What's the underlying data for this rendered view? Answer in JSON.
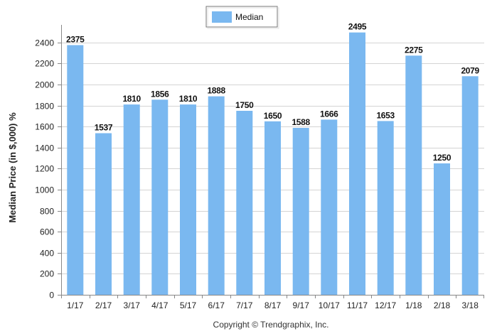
{
  "chart_data": {
    "type": "bar",
    "categories": [
      "1/17",
      "2/17",
      "3/17",
      "4/17",
      "5/17",
      "6/17",
      "7/17",
      "8/17",
      "9/17",
      "10/17",
      "11/17",
      "12/17",
      "1/18",
      "2/18",
      "3/18"
    ],
    "series": [
      {
        "name": "Median",
        "values": [
          2375,
          1537,
          1810,
          1856,
          1810,
          1888,
          1750,
          1650,
          1588,
          1666,
          2495,
          1653,
          2275,
          1250,
          2079
        ]
      }
    ],
    "data_labels": [
      "2375",
      "1537",
      "1810",
      "1856",
      "1810",
      "1888",
      "1750",
      "1650",
      "1588",
      "1666",
      "2495",
      "1653",
      "2275",
      "1250",
      "2079"
    ],
    "ylabel": "Median Price (in $,000) %",
    "xlabel": "",
    "ylim": [
      0,
      2500
    ],
    "yticks": [
      0,
      200,
      400,
      600,
      800,
      1000,
      1200,
      1400,
      1600,
      1800,
      2000,
      2200,
      2400
    ],
    "ytick_labels": [
      "0",
      "200",
      "400",
      "600",
      "800",
      "1000",
      "1200",
      "1400",
      "1600",
      "1800",
      "2000",
      "2200",
      "2400"
    ],
    "grid": true,
    "legend_position": "top-center",
    "bar_color": "#7ab8f0",
    "footer": "Copyright © Trendgraphix, Inc."
  }
}
